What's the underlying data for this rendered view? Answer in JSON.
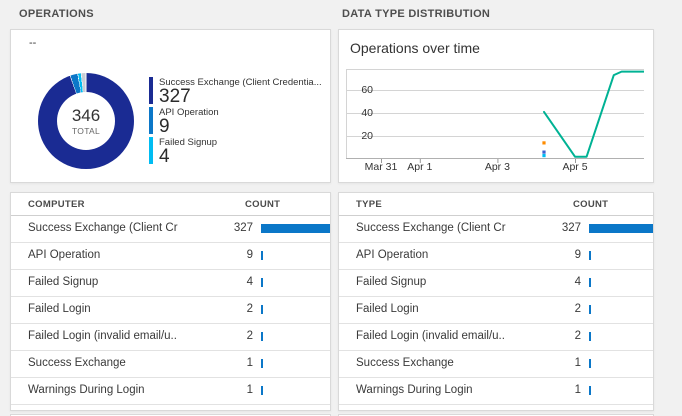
{
  "page": {
    "background": "#f1f1f1"
  },
  "left_panel": {
    "header": "OPERATIONS",
    "donut_card": {
      "subtitle": "--",
      "total_value": "346",
      "total_label": "TOTAL",
      "legend": [
        {
          "label": "Success Exchange (Client Credentia...",
          "value": "327",
          "color": "#1a2b93"
        },
        {
          "label": "API Operation",
          "value": "9",
          "color": "#0b77c8"
        },
        {
          "label": "Failed Signup",
          "value": "4",
          "color": "#00bcf2"
        }
      ]
    },
    "table": {
      "columns": [
        "COMPUTER",
        "COUNT"
      ],
      "rows": [
        {
          "label": "Success Exchange (Client Cre...",
          "count": 327
        },
        {
          "label": "API Operation",
          "count": 9
        },
        {
          "label": "Failed Signup",
          "count": 4
        },
        {
          "label": "Failed Login",
          "count": 2
        },
        {
          "label": "Failed Login (invalid email/u...",
          "count": 2
        },
        {
          "label": "Success Exchange",
          "count": 1
        },
        {
          "label": "Warnings During Login",
          "count": 1
        }
      ]
    }
  },
  "right_panel": {
    "header": "DATA TYPE DISTRIBUTION",
    "chart_card": {
      "title": "Operations over time"
    },
    "table": {
      "columns": [
        "TYPE",
        "COUNT"
      ],
      "rows": [
        {
          "label": "Success Exchange (Client Cre...",
          "count": 327
        },
        {
          "label": "API Operation",
          "count": 9
        },
        {
          "label": "Failed Signup",
          "count": 4
        },
        {
          "label": "Failed Login",
          "count": 2
        },
        {
          "label": "Failed Login (invalid email/u...",
          "count": 2
        },
        {
          "label": "Success Exchange",
          "count": 1
        },
        {
          "label": "Warnings During Login",
          "count": 1
        }
      ]
    }
  },
  "chart_data": [
    {
      "type": "pie",
      "donut": true,
      "title": "Operations donut",
      "center_label": "346 TOTAL",
      "labels": [
        "Success Exchange (Client Credentia...",
        "API Operation",
        "Failed Signup"
      ],
      "values": [
        327,
        9,
        4
      ],
      "colors": [
        "#1a2b93",
        "#0b77c8",
        "#00bcf2"
      ],
      "remainder_color": "#c9cdd4",
      "total": 346
    },
    {
      "type": "line",
      "title": "Operations over time",
      "x_unit": "days after Mar 31",
      "xticks": [
        {
          "label": "Mar 31",
          "day": 0
        },
        {
          "label": "Apr 1",
          "day": 1
        },
        {
          "label": "Apr 3",
          "day": 3
        },
        {
          "label": "Apr 5",
          "day": 5
        }
      ],
      "yticks": [
        20,
        40,
        60
      ],
      "ylim": [
        0,
        78
      ],
      "grid": true,
      "legend_position": "none",
      "series": [
        {
          "name": "Operations",
          "color": "#00b294",
          "points": [
            [
              4.2,
              41
            ],
            [
              5.0,
              2
            ],
            [
              5.3,
              2
            ],
            [
              6.0,
              73
            ],
            [
              6.2,
              76
            ],
            [
              6.8,
              76
            ]
          ]
        }
      ],
      "point_markers": [
        {
          "color": "#ff8c00",
          "point": [
            4.2,
            14
          ]
        },
        {
          "color": "#3b62d2",
          "point": [
            4.2,
            6
          ]
        },
        {
          "color": "#00bcf2",
          "point": [
            4.2,
            3
          ]
        }
      ]
    }
  ],
  "styles": {
    "count_bar_color": "#0b77c8",
    "grid_color": "#d4d4d4",
    "axis_color": "#b0b0b0",
    "tick_color": "#999999"
  }
}
